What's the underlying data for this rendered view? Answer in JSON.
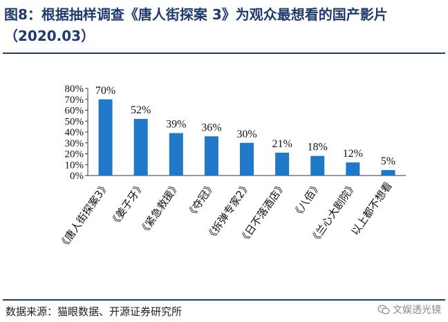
{
  "title": "图8：根据抽样调查《唐人街探案 3》为观众最想看的国产影片（2020.03）",
  "source": "数据来源：猫眼数据、开源证券研究所",
  "watermark": "文娱透光镜",
  "colors": {
    "bar": "#1f78c8",
    "title": "#1f3a6e",
    "axis": "#333333"
  },
  "chart_data": {
    "type": "bar",
    "title": "图8：根据抽样调查《唐人街探案 3》为观众最想看的国产影片（2020.03）",
    "xlabel": "",
    "ylabel": "",
    "ylim": [
      0,
      80
    ],
    "yticks": [
      "0%",
      "10%",
      "20%",
      "30%",
      "40%",
      "50%",
      "60%",
      "70%",
      "80%"
    ],
    "grid": false,
    "categories": [
      "《唐人街探案3》",
      "《姜子牙》",
      "《紧急救援》",
      "《夺冠》",
      "《拆弹专家2》",
      "《日不落酒店》",
      "《八佰》",
      "《兰心大剧院》",
      "以上都不想看"
    ],
    "values": [
      70,
      52,
      39,
      36,
      30,
      21,
      18,
      12,
      5
    ],
    "data_labels": [
      "70%",
      "52%",
      "39%",
      "36%",
      "30%",
      "21%",
      "18%",
      "12%",
      "5%"
    ]
  }
}
